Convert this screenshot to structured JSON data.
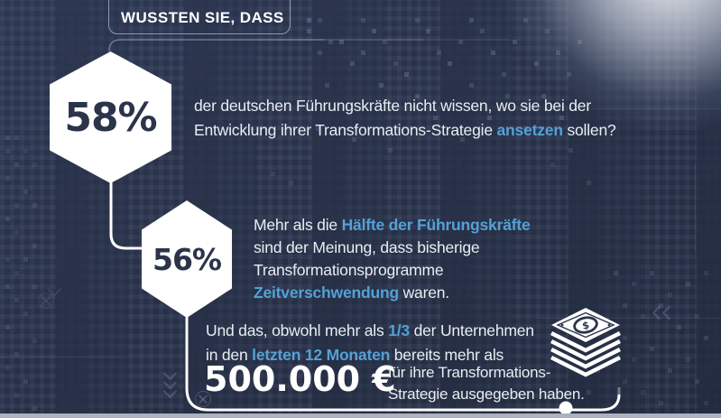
{
  "colors": {
    "background": "#283148",
    "accent": "#54a1d6",
    "hexagon_fill": "#ffffff",
    "hexagon_number": "#2b3449",
    "body_text": "#e9edf3",
    "connector_line": "#ffffff",
    "bottom_bar": "#aab2c0"
  },
  "header": {
    "title": "WUSSTEN SIE, DASS"
  },
  "facts": {
    "fact58": {
      "value": "58%",
      "segments": [
        {
          "t": "der deutschen Führungskräfte nicht wissen, wo sie bei der\nEntwicklung ihrer Transformations-Strategie ",
          "a": false
        },
        {
          "t": "ansetzen",
          "a": true
        },
        {
          "t": " sollen?",
          "a": false
        }
      ]
    },
    "fact56": {
      "value": "56%",
      "segments": [
        {
          "t": "Mehr als die ",
          "a": false
        },
        {
          "t": "Hälfte der Führungskräfte",
          "a": true
        },
        {
          "t": "\nsind der Meinung, dass bisherige\nTransformationsprogramme\n",
          "a": false
        },
        {
          "t": "Zeitverschwendung",
          "a": true
        },
        {
          "t": " waren.",
          "a": false
        }
      ]
    },
    "factSpend": {
      "segments": [
        {
          "t": "Und das, obwohl mehr als ",
          "a": false
        },
        {
          "t": "1/3",
          "a": true
        },
        {
          "t": " der Unternehmen\nin den ",
          "a": false
        },
        {
          "t": "letzten 12 Monaten",
          "a": true
        },
        {
          "t": " bereits mehr als",
          "a": false
        }
      ],
      "amount": "500.000 €",
      "caption": "für ihre Transformations-\nStrategie ausgegeben haben."
    }
  },
  "icons": {
    "money_stack": "stack-of-banknotes",
    "money_symbol": "$"
  }
}
